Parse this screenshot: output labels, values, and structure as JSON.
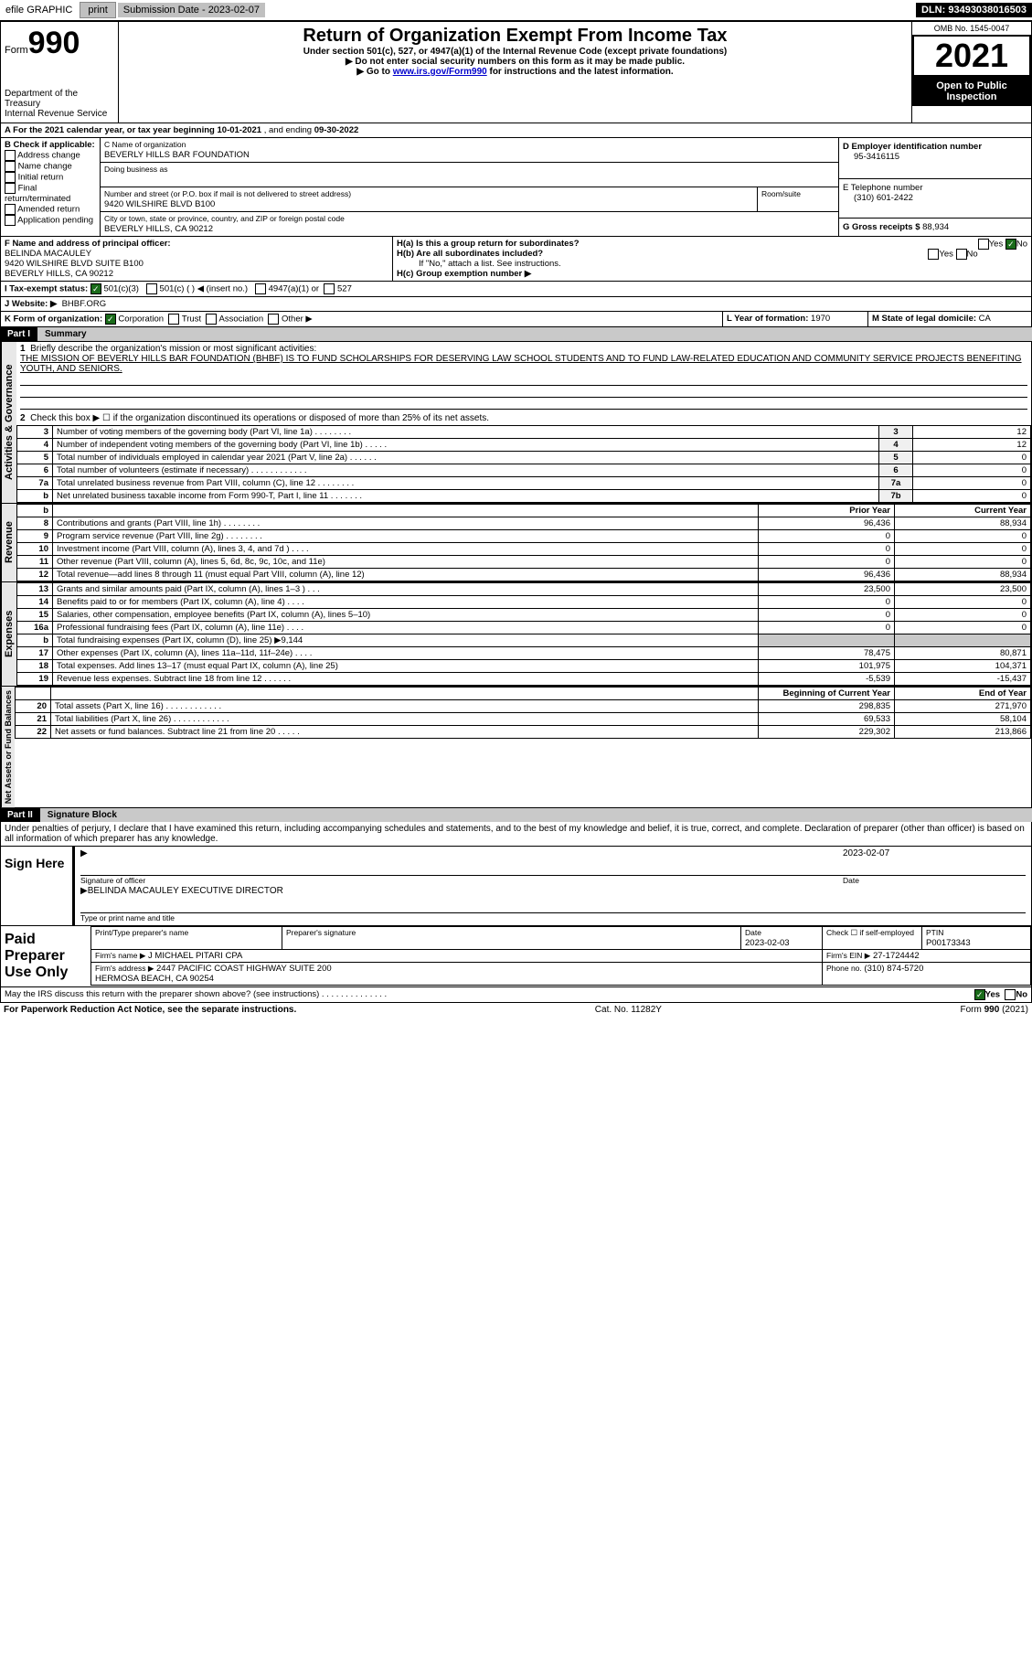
{
  "topbar": {
    "efile": "efile GRAPHIC",
    "print": "print",
    "subdate_lbl": "Submission Date - 2023-02-07",
    "dln": "DLN: 93493038016503"
  },
  "hdr": {
    "form_word": "Form",
    "form_num": "990",
    "title": "Return of Organization Exempt From Income Tax",
    "sub1": "Under section 501(c), 527, or 4947(a)(1) of the Internal Revenue Code (except private foundations)",
    "sub2": "▶ Do not enter social security numbers on this form as it may be made public.",
    "sub3_pre": "▶ Go to ",
    "sub3_link": "www.irs.gov/Form990",
    "sub3_post": " for instructions and the latest information.",
    "dept": "Department of the Treasury",
    "irs": "Internal Revenue Service",
    "omb": "OMB No. 1545-0047",
    "year": "2021",
    "open": "Open to Public Inspection"
  },
  "A": {
    "pre": "A For the 2021 calendar year, or tax year beginning ",
    "begin": "10-01-2021",
    "mid": " , and ending ",
    "end": "09-30-2022"
  },
  "B": {
    "lbl": "B Check if applicable:",
    "items": [
      "Address change",
      "Name change",
      "Initial return",
      "Final return/terminated",
      "Amended return",
      "Application pending"
    ]
  },
  "C": {
    "name_lbl": "C Name of organization",
    "name": "BEVERLY HILLS BAR FOUNDATION",
    "dba_lbl": "Doing business as",
    "dba": "",
    "addr_lbl": "Number and street (or P.O. box if mail is not delivered to street address)",
    "room_lbl": "Room/suite",
    "addr": "9420 WILSHIRE BLVD B100",
    "city_lbl": "City or town, state or province, country, and ZIP or foreign postal code",
    "city": "BEVERLY HILLS, CA  90212"
  },
  "D": {
    "lbl": "D Employer identification number",
    "val": "95-3416115"
  },
  "E": {
    "lbl": "E Telephone number",
    "val": "(310) 601-2422"
  },
  "G": {
    "lbl": "G Gross receipts $",
    "val": "88,934"
  },
  "F": {
    "lbl": "F  Name and address of principal officer:",
    "name": "BELINDA MACAULEY",
    "addr1": "9420 WILSHIRE BLVD SUITE B100",
    "addr2": "BEVERLY HILLS, CA  90212"
  },
  "H": {
    "a_lbl": "H(a)  Is this a group return for subordinates?",
    "b_lbl": "H(b)  Are all subordinates included?",
    "b_note": "If \"No,\" attach a list. See instructions.",
    "c_lbl": "H(c)  Group exemption number ▶",
    "yes": "Yes",
    "no": "No"
  },
  "I": {
    "lbl": "I   Tax-exempt status:",
    "o1": "501(c)(3)",
    "o2": "501(c) (  ) ◀ (insert no.)",
    "o3": "4947(a)(1) or",
    "o4": "527"
  },
  "J": {
    "lbl": "J  Website: ▶",
    "val": "BHBF.ORG"
  },
  "K": {
    "lbl": "K Form of organization:",
    "o1": "Corporation",
    "o2": "Trust",
    "o3": "Association",
    "o4": "Other ▶"
  },
  "L": {
    "lbl": "L Year of formation:",
    "val": "1970"
  },
  "M": {
    "lbl": "M State of legal domicile:",
    "val": "CA"
  },
  "p1": {
    "part": "Part I",
    "title": "Summary",
    "l1": "Briefly describe the organization's mission or most significant activities:",
    "mission": "THE MISSION OF BEVERLY HILLS BAR FOUNDATION (BHBF) IS TO FUND SCHOLARSHIPS FOR DESERVING LAW SCHOOL STUDENTS AND TO FUND LAW-RELATED EDUCATION AND COMMUNITY SERVICE PROJECTS BENEFITING YOUTH, AND SENIORS.",
    "l2": "Check this box ▶ ☐ if the organization discontinued its operations or disposed of more than 25% of its net assets.",
    "sideA": "Activities & Governance",
    "sideR": "Revenue",
    "sideE": "Expenses",
    "sideN": "Net Assets or Fund Balances",
    "rows_gov": [
      {
        "n": "3",
        "t": "Number of voting members of the governing body (Part VI, line 1a)   .    .    .    .    .    .    .    .",
        "box": "3",
        "v": "12"
      },
      {
        "n": "4",
        "t": "Number of independent voting members of the governing body (Part VI, line 1b)   .    .    .    .    .",
        "box": "4",
        "v": "12"
      },
      {
        "n": "5",
        "t": "Total number of individuals employed in calendar year 2021 (Part V, line 2a)   .    .    .    .    .    .",
        "box": "5",
        "v": "0"
      },
      {
        "n": "6",
        "t": "Total number of volunteers (estimate if necessary)    .    .    .    .    .    .    .    .    .    .    .    .",
        "box": "6",
        "v": "0"
      },
      {
        "n": "7a",
        "t": "Total unrelated business revenue from Part VIII, column (C), line 12   .    .    .    .    .    .    .    .",
        "box": "7a",
        "v": "0"
      },
      {
        "n": "b",
        "t": "Net unrelated business taxable income from Form 990-T, Part I, line 11   .    .    .    .    .    .    .",
        "box": "7b",
        "v": "0"
      }
    ],
    "py": "Prior Year",
    "cy": "Current Year",
    "rows_rev": [
      {
        "n": "8",
        "t": "Contributions and grants (Part VIII, line 1h)   .    .    .    .    .    .    .    .",
        "p": "96,436",
        "c": "88,934"
      },
      {
        "n": "9",
        "t": "Program service revenue (Part VIII, line 2g)   .    .    .    .    .    .    .    .",
        "p": "0",
        "c": "0"
      },
      {
        "n": "10",
        "t": "Investment income (Part VIII, column (A), lines 3, 4, and 7d )   .    .    .    .",
        "p": "0",
        "c": "0"
      },
      {
        "n": "11",
        "t": "Other revenue (Part VIII, column (A), lines 5, 6d, 8c, 9c, 10c, and 11e)",
        "p": "0",
        "c": "0"
      },
      {
        "n": "12",
        "t": "Total revenue—add lines 8 through 11 (must equal Part VIII, column (A), line 12)",
        "p": "96,436",
        "c": "88,934"
      }
    ],
    "rows_exp": [
      {
        "n": "13",
        "t": "Grants and similar amounts paid (Part IX, column (A), lines 1–3 )   .    .    .",
        "p": "23,500",
        "c": "23,500"
      },
      {
        "n": "14",
        "t": "Benefits paid to or for members (Part IX, column (A), line 4)   .    .    .    .",
        "p": "0",
        "c": "0"
      },
      {
        "n": "15",
        "t": "Salaries, other compensation, employee benefits (Part IX, column (A), lines 5–10)",
        "p": "0",
        "c": "0"
      },
      {
        "n": "16a",
        "t": "Professional fundraising fees (Part IX, column (A), line 11e)   .    .    .    .",
        "p": "0",
        "c": "0"
      },
      {
        "n": "b",
        "t": "Total fundraising expenses (Part IX, column (D), line 25) ▶9,144",
        "p": "",
        "c": "",
        "shade": true
      },
      {
        "n": "17",
        "t": "Other expenses (Part IX, column (A), lines 11a–11d, 11f–24e)   .    .    .    .",
        "p": "78,475",
        "c": "80,871"
      },
      {
        "n": "18",
        "t": "Total expenses. Add lines 13–17 (must equal Part IX, column (A), line 25)",
        "p": "101,975",
        "c": "104,371"
      },
      {
        "n": "19",
        "t": "Revenue less expenses. Subtract line 18 from line 12   .    .    .    .    .    .",
        "p": "-5,539",
        "c": "-15,437"
      }
    ],
    "by": "Beginning of Current Year",
    "ey": "End of Year",
    "rows_net": [
      {
        "n": "20",
        "t": "Total assets (Part X, line 16)   .    .    .    .    .    .    .    .    .    .    .    .",
        "p": "298,835",
        "c": "271,970"
      },
      {
        "n": "21",
        "t": "Total liabilities (Part X, line 26)   .    .    .    .    .    .    .    .    .    .    .    .",
        "p": "69,533",
        "c": "58,104"
      },
      {
        "n": "22",
        "t": "Net assets or fund balances. Subtract line 21 from line 20   .    .    .    .    .",
        "p": "229,302",
        "c": "213,866"
      }
    ]
  },
  "p2": {
    "part": "Part II",
    "title": "Signature Block",
    "decl": "Under penalties of perjury, I declare that I have examined this return, including accompanying schedules and statements, and to the best of my knowledge and belief, it is true, correct, and complete. Declaration of preparer (other than officer) is based on all information of which preparer has any knowledge.",
    "sign": "Sign Here",
    "sig_lbl": "Signature of officer",
    "date_lbl": "Date",
    "sig_date": "2023-02-07",
    "name_lbl": "Type or print name and title",
    "name": "BELINDA MACAULEY  EXECUTIVE DIRECTOR",
    "paid": "Paid Preparer Use Only",
    "pt_name_lbl": "Print/Type preparer's name",
    "pt_sig_lbl": "Preparer's signature",
    "pt_date_lbl": "Date",
    "pt_date": "2023-02-03",
    "pt_self_lbl": "Check ☐ if self-employed",
    "ptin_lbl": "PTIN",
    "ptin": "P00173343",
    "firm_name_lbl": "Firm's name    ▶",
    "firm_name": "J MICHAEL PITARI CPA",
    "firm_ein_lbl": "Firm's EIN ▶",
    "firm_ein": "27-1724442",
    "firm_addr_lbl": "Firm's address ▶",
    "firm_addr": "2447 PACIFIC COAST HIGHWAY SUITE 200\nHERMOSA BEACH, CA  90254",
    "phone_lbl": "Phone no.",
    "phone": "(310) 874-5720",
    "may": "May the IRS discuss this return with the preparer shown above? (see instructions)   .    .    .    .    .    .    .    .    .    .    .    .    .    .",
    "yes": "Yes",
    "no": "No"
  },
  "footer": {
    "l": "For Paperwork Reduction Act Notice, see the separate instructions.",
    "c": "Cat. No. 11282Y",
    "r": "Form 990 (2021)"
  }
}
